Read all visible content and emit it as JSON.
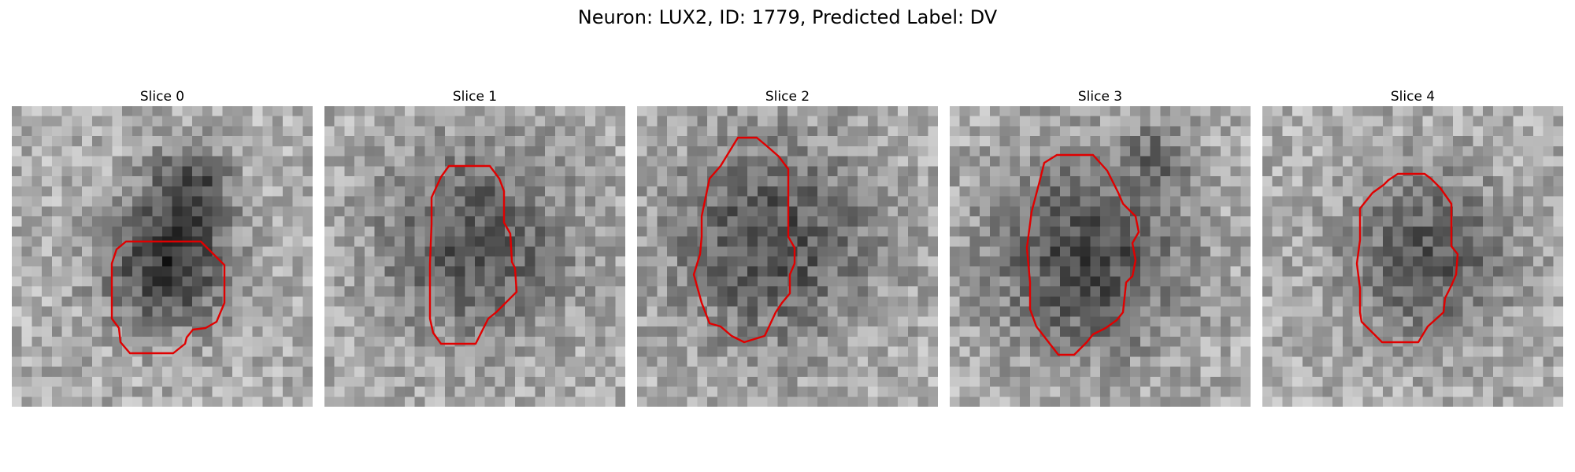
{
  "figure": {
    "title": "Neuron: LUX2, ID: 1779, Predicted Label: DV",
    "contour_color": "#e00000"
  },
  "panels": [
    {
      "title": "Slice 0"
    },
    {
      "title": "Slice 1"
    },
    {
      "title": "Slice 2"
    },
    {
      "title": "Slice 3"
    },
    {
      "title": "Slice 4"
    }
  ]
}
